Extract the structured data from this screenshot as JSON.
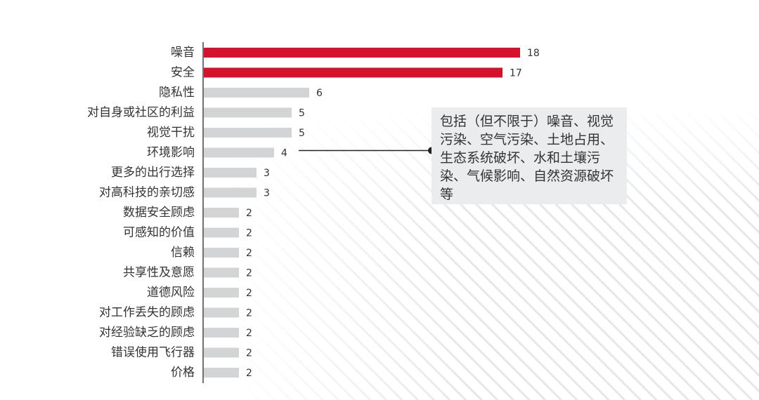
{
  "chart_data": {
    "type": "bar",
    "orientation": "horizontal",
    "categories": [
      "噪音",
      "安全",
      "隐私性",
      "对自身或社区的利益",
      "视觉干扰",
      "环境影响",
      "更多的出行选择",
      "对高科技的亲切感",
      "数据安全顾虑",
      "可感知的价值",
      "信赖",
      "共享性及意愿",
      "道德风险",
      "对工作丢失的顾虑",
      "对经验缺乏的顾虑",
      "错误使用飞行器",
      "价格"
    ],
    "values": [
      18,
      17,
      6,
      5,
      5,
      4,
      3,
      3,
      2,
      2,
      2,
      2,
      2,
      2,
      2,
      2,
      2
    ],
    "highlighted": [
      true,
      true,
      false,
      false,
      false,
      false,
      false,
      false,
      false,
      false,
      false,
      false,
      false,
      false,
      false,
      false,
      false
    ],
    "xlim": [
      0,
      18
    ],
    "grid": false,
    "annotation": {
      "target_category": "环境影响",
      "text": "包括（但不限于）噪音、视觉污染、空气污染、土地占用、生态系统破坏、水和土壤污染、气候影响、自然资源破坏等"
    }
  },
  "colors": {
    "highlight": "#d6112b",
    "normal": "#d3d4d6",
    "axis": "#444444",
    "callout_bg": "#eaecee",
    "stripe": "#e6e7e9"
  }
}
